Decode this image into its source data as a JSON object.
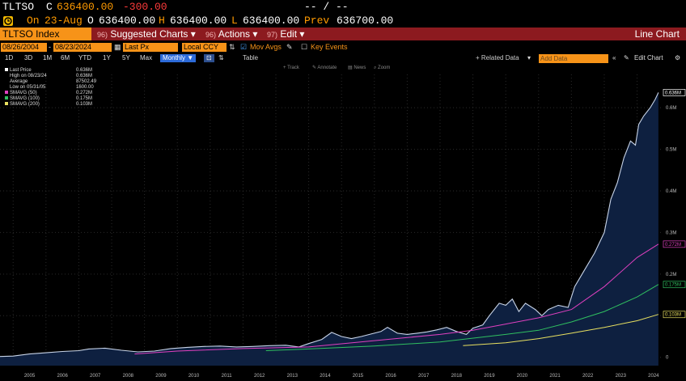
{
  "quote": {
    "ticker": "TLTSO",
    "c_label": "C",
    "last": "636400.00",
    "change": "-300.00",
    "dashes": "-- / --",
    "on_label": "On",
    "date": "23-Aug",
    "o_label": "O",
    "open": "636400.00",
    "h_label": "H",
    "high": "636400.00",
    "l_label": "L",
    "low": "636400.00",
    "prev_label": "Prev",
    "prev": "636700.00"
  },
  "toolbar": {
    "index_name": "TLTSO Index",
    "suggested_num": "96)",
    "suggested": "Suggested Charts",
    "actions_num": "96)",
    "actions": "Actions",
    "edit_num": "97)",
    "edit": "Edit",
    "chart_type": "Line Chart"
  },
  "controls": {
    "start_date": "08/26/2004",
    "end_date": "08/23/2024",
    "field": "Last Px",
    "currency": "Local CCY",
    "mov_avgs": "Mov Avgs",
    "key_events": "Key Events",
    "periods": [
      "1D",
      "3D",
      "1M",
      "6M",
      "YTD",
      "1Y",
      "5Y",
      "Max"
    ],
    "frequency": "Monthly",
    "table": "Table",
    "related_data": "+ Related Data",
    "add_data": "Add Data",
    "edit_chart": "Edit Chart",
    "track": "Track",
    "annotate": "Annotate",
    "news": "News",
    "zoom": "Zoom"
  },
  "legend": [
    {
      "label": "Last Price",
      "value": "0.636M",
      "color": "#ffffff"
    },
    {
      "label": "High on 08/23/24",
      "value": "0.636M",
      "color": ""
    },
    {
      "label": "Average",
      "value": "87502.49",
      "color": ""
    },
    {
      "label": "Low on 05/31/05",
      "value": "1600.00",
      "color": ""
    },
    {
      "label": "SMAVG (50)",
      "value": "0.272M",
      "color": "#e040c0"
    },
    {
      "label": "SMAVG (100)",
      "value": "0.175M",
      "color": "#30c060"
    },
    {
      "label": "SMAVG (200)",
      "value": "0.103M",
      "color": "#e8e060"
    }
  ],
  "chart_data": {
    "type": "area",
    "x_labels": [
      "2005",
      "2006",
      "2007",
      "2008",
      "2009",
      "2010",
      "2011",
      "2012",
      "2013",
      "2014",
      "2015",
      "2016",
      "2017",
      "2018",
      "2019",
      "2020",
      "2021",
      "2022",
      "2023",
      "2024"
    ],
    "y_ticks": [
      0,
      100000,
      200000,
      300000,
      400000,
      500000,
      600000
    ],
    "y_tick_labels": [
      "0",
      "0.1M",
      "0.2M",
      "0.3M",
      "0.4M",
      "0.5M",
      "0.6M"
    ],
    "ylim": [
      -20000,
      680000
    ],
    "series": [
      {
        "name": "Last Price",
        "color": "#c8d4e8",
        "fill": "#0e2040",
        "points": [
          [
            2004.6,
            2000
          ],
          [
            2005,
            3000
          ],
          [
            2005.5,
            8000
          ],
          [
            2006,
            11000
          ],
          [
            2006.5,
            14000
          ],
          [
            2007,
            16000
          ],
          [
            2007.3,
            20000
          ],
          [
            2007.8,
            22000
          ],
          [
            2008.3,
            17000
          ],
          [
            2008.8,
            13000
          ],
          [
            2009.3,
            15000
          ],
          [
            2009.8,
            21000
          ],
          [
            2010.3,
            24000
          ],
          [
            2010.8,
            26000
          ],
          [
            2011.3,
            27000
          ],
          [
            2011.8,
            25000
          ],
          [
            2012.3,
            26000
          ],
          [
            2012.8,
            28000
          ],
          [
            2013.3,
            29000
          ],
          [
            2013.7,
            25000
          ],
          [
            2014,
            33000
          ],
          [
            2014.4,
            43000
          ],
          [
            2014.7,
            60000
          ],
          [
            2015,
            50000
          ],
          [
            2015.3,
            45000
          ],
          [
            2015.6,
            50000
          ],
          [
            2015.9,
            56000
          ],
          [
            2016.2,
            62000
          ],
          [
            2016.4,
            72000
          ],
          [
            2016.7,
            58000
          ],
          [
            2017,
            55000
          ],
          [
            2017.3,
            58000
          ],
          [
            2017.6,
            61000
          ],
          [
            2017.9,
            66000
          ],
          [
            2018.2,
            72000
          ],
          [
            2018.5,
            62000
          ],
          [
            2018.8,
            55000
          ],
          [
            2019,
            70000
          ],
          [
            2019.3,
            78000
          ],
          [
            2019.5,
            100000
          ],
          [
            2019.8,
            130000
          ],
          [
            2020,
            125000
          ],
          [
            2020.2,
            140000
          ],
          [
            2020.4,
            110000
          ],
          [
            2020.6,
            130000
          ],
          [
            2020.9,
            115000
          ],
          [
            2021.1,
            100000
          ],
          [
            2021.3,
            115000
          ],
          [
            2021.6,
            125000
          ],
          [
            2021.9,
            120000
          ],
          [
            2022.1,
            170000
          ],
          [
            2022.4,
            210000
          ],
          [
            2022.7,
            250000
          ],
          [
            2023,
            300000
          ],
          [
            2023.2,
            380000
          ],
          [
            2023.4,
            420000
          ],
          [
            2023.6,
            480000
          ],
          [
            2023.8,
            520000
          ],
          [
            2023.95,
            510000
          ],
          [
            2024.05,
            560000
          ],
          [
            2024.2,
            580000
          ],
          [
            2024.4,
            600000
          ],
          [
            2024.55,
            620000
          ],
          [
            2024.65,
            636400
          ]
        ]
      },
      {
        "name": "SMAVG (50)",
        "color": "#e040c0",
        "points": [
          [
            2008.7,
            8000
          ],
          [
            2010,
            15000
          ],
          [
            2012,
            21000
          ],
          [
            2014,
            25000
          ],
          [
            2016,
            40000
          ],
          [
            2018,
            55000
          ],
          [
            2019,
            65000
          ],
          [
            2020,
            80000
          ],
          [
            2021,
            95000
          ],
          [
            2022,
            115000
          ],
          [
            2023,
            170000
          ],
          [
            2024,
            240000
          ],
          [
            2024.65,
            272000
          ]
        ]
      },
      {
        "name": "SMAVG (100)",
        "color": "#30c060",
        "points": [
          [
            2012.7,
            16000
          ],
          [
            2014,
            20000
          ],
          [
            2016,
            27000
          ],
          [
            2018,
            37000
          ],
          [
            2020,
            55000
          ],
          [
            2021,
            65000
          ],
          [
            2022,
            85000
          ],
          [
            2023,
            110000
          ],
          [
            2024,
            145000
          ],
          [
            2024.65,
            175000
          ]
        ]
      },
      {
        "name": "SMAVG (200)",
        "color": "#e8e060",
        "points": [
          [
            2018.7,
            28000
          ],
          [
            2020,
            35000
          ],
          [
            2021,
            45000
          ],
          [
            2022,
            58000
          ],
          [
            2023,
            72000
          ],
          [
            2024,
            88000
          ],
          [
            2024.65,
            103000
          ]
        ]
      }
    ],
    "markers": [
      {
        "label": "0.636M",
        "value": 636400,
        "color": "#ffffff"
      },
      {
        "label": "0.272M",
        "value": 272000,
        "color": "#e040c0"
      },
      {
        "label": "0.175M",
        "value": 175000,
        "color": "#30c060"
      },
      {
        "label": "0.103M",
        "value": 103000,
        "color": "#e8e060"
      }
    ]
  }
}
